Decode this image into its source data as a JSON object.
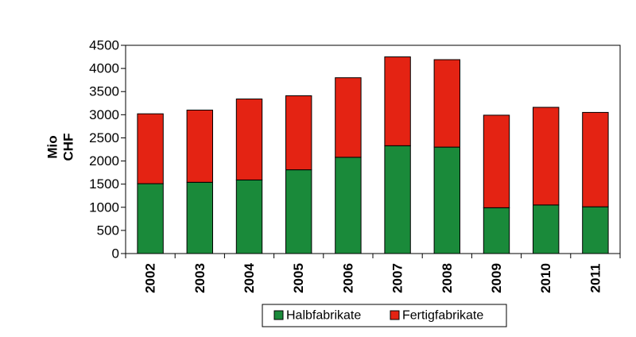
{
  "chart_data": {
    "type": "bar",
    "stacked": true,
    "categories": [
      "2002",
      "2003",
      "2004",
      "2005",
      "2006",
      "2007",
      "2008",
      "2009",
      "2010",
      "2011"
    ],
    "series": [
      {
        "name": "Halbfabrikate",
        "color": "#1a8a3a",
        "values": [
          1510,
          1540,
          1590,
          1810,
          2080,
          2330,
          2300,
          990,
          1050,
          1010
        ]
      },
      {
        "name": "Fertigfabrikate",
        "color": "#e42313",
        "values": [
          1510,
          1560,
          1750,
          1600,
          1720,
          1920,
          1890,
          2000,
          2110,
          2040
        ]
      }
    ],
    "ylabel_lines": [
      "Mio",
      "CHF"
    ],
    "ylim": [
      0,
      4500
    ],
    "yticks": [
      0,
      500,
      1000,
      1500,
      2000,
      2500,
      3000,
      3500,
      4000,
      4500
    ],
    "grid": false,
    "legend_position": "bottom"
  }
}
